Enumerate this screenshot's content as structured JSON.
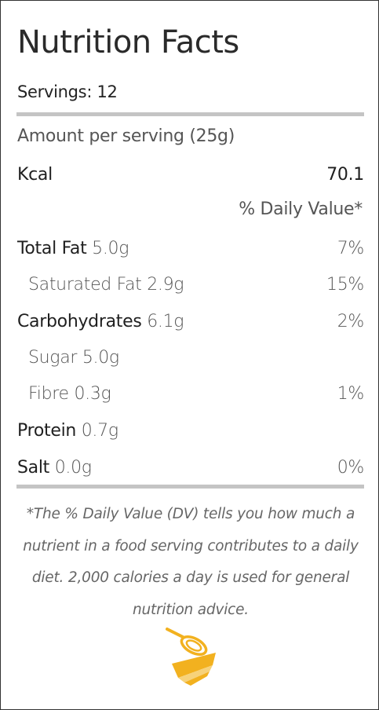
{
  "title": "Nutrition Facts",
  "servings": "Servings: 12",
  "amount_per_serving": "Amount per serving (25g)",
  "kcal": {
    "label": "Kcal",
    "value": "70.1"
  },
  "daily_value_header": "% Daily Value*",
  "nutrients": [
    {
      "label": "Total Fat",
      "amount": "5.0g",
      "dv": "7%"
    },
    {
      "label": "Saturated Fat",
      "amount": "2.9g",
      "dv": "15%"
    },
    {
      "label": "Carbohydrates",
      "amount": "6.1g",
      "dv": "2%"
    },
    {
      "label": "Sugar",
      "amount": "5.0g",
      "dv": ""
    },
    {
      "label": "Fibre",
      "amount": "0.3g",
      "dv": "1%"
    },
    {
      "label": "Protein",
      "amount": "0.7g",
      "dv": ""
    },
    {
      "label": "Salt",
      "amount": "0.0g",
      "dv": "0%"
    }
  ],
  "footnote": "*The % Daily Value (DV) tells you how much a nutrient in a food serving contributes to a daily diet. 2,000 calories a day is used for general nutrition advice.",
  "colors": {
    "rule": "#c4c4c4",
    "logo_primary": "#f2b11f",
    "logo_light": "#f7d27a"
  },
  "logo_icon": "whisk-bowl-icon"
}
